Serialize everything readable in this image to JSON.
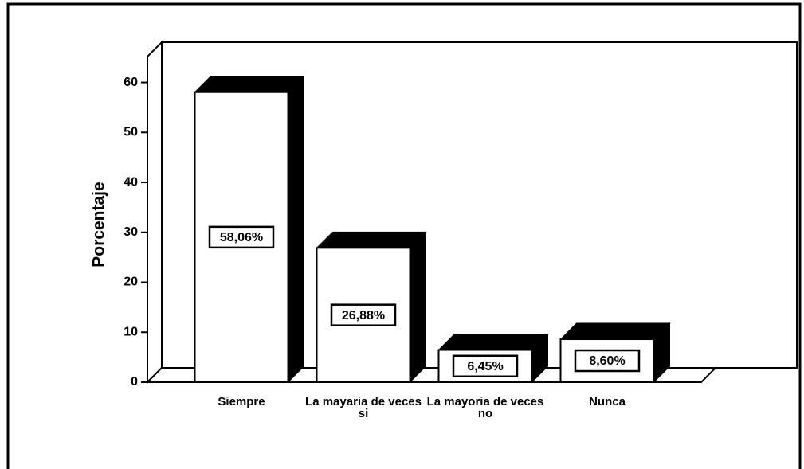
{
  "chart_data": {
    "type": "bar3d",
    "y_label": "Porcentaje",
    "categories": [
      "Siempre",
      "La mayaria de veces si",
      "La mayoria de veces no",
      "Nunca"
    ],
    "values": [
      58.06,
      26.88,
      6.45,
      8.6
    ],
    "value_labels": [
      "58,06%",
      "26,88%",
      "6,45%",
      "8,60%"
    ],
    "color": "#ffffff",
    "side_color": "#000000",
    "ylim": [
      0,
      62
    ],
    "yticks": [
      0,
      10,
      20,
      30,
      40,
      50,
      60
    ],
    "grid": false
  }
}
